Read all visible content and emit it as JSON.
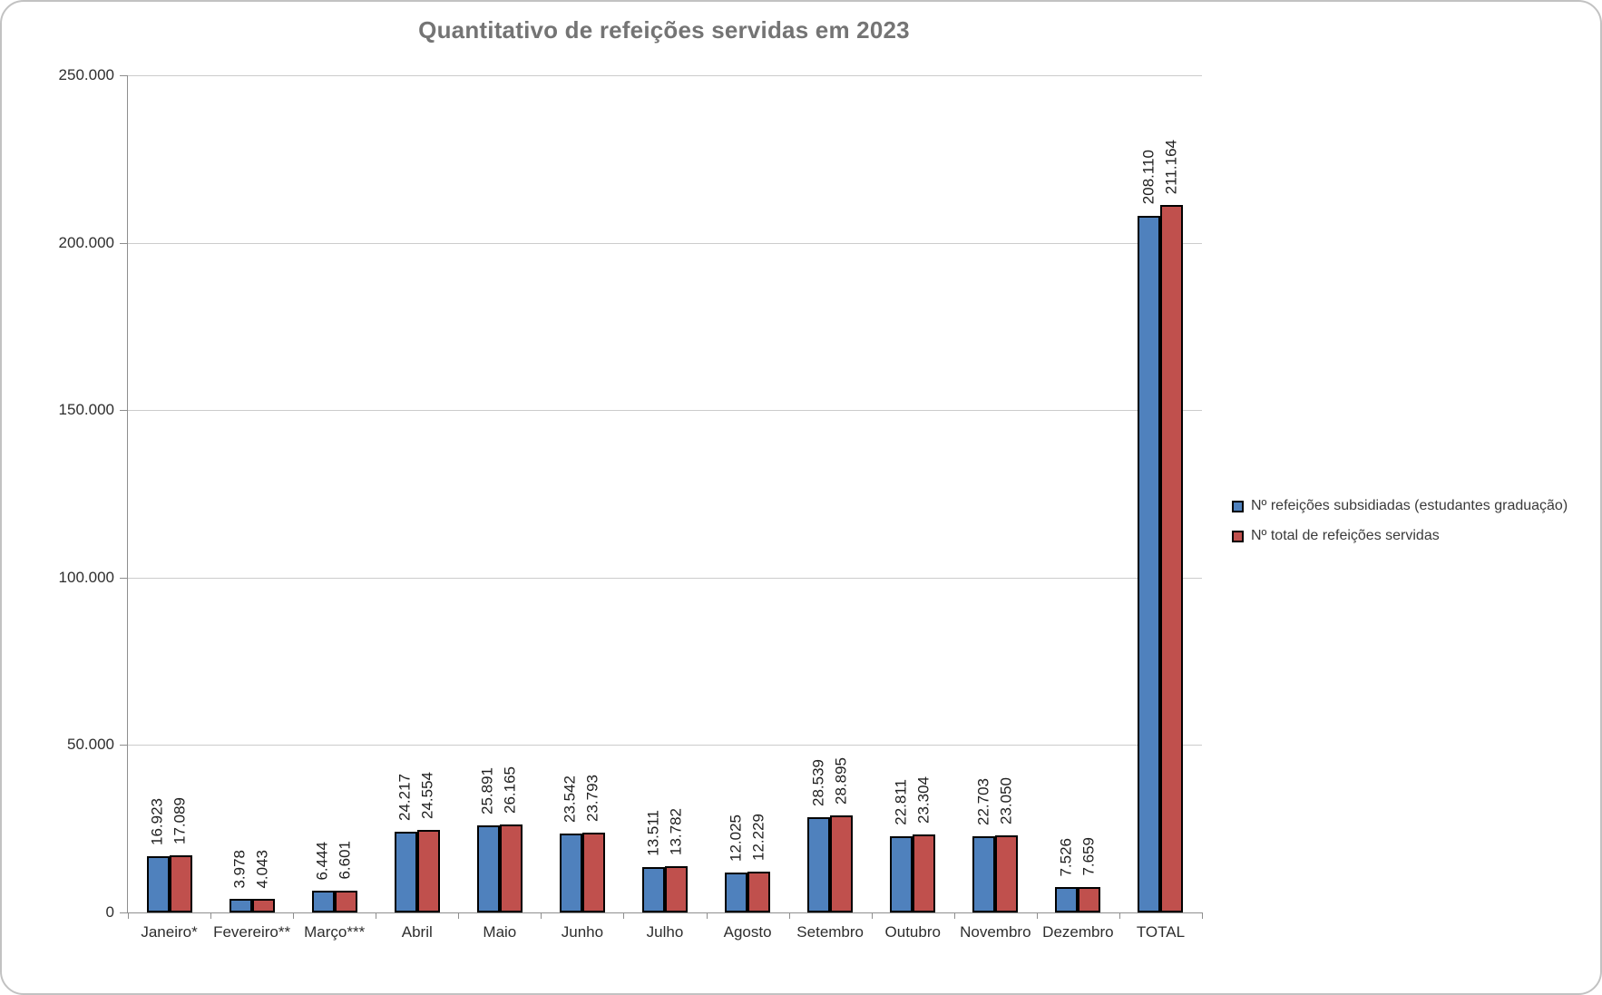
{
  "title": "Quantitativo de refeições servidas em 2023",
  "colors": {
    "series1_fill": "#4F81BD",
    "series2_fill": "#C0504D",
    "bar_border": "#000000",
    "title_text": "#747474",
    "gridline": "#CCCCCC",
    "axis_line": "#8E8E8E",
    "frame_border": "#C2C2C2",
    "label_text": "#1f1f1f"
  },
  "chart_data": {
    "type": "bar",
    "title": "Quantitativo de refeições servidas em 2023",
    "xlabel": "",
    "ylabel": "",
    "categories": [
      "Janeiro*",
      "Fevereiro**",
      "Março***",
      "Abril",
      "Maio",
      "Junho",
      "Julho",
      "Agosto",
      "Setembro",
      "Outubro",
      "Novembro",
      "Dezembro",
      "TOTAL"
    ],
    "series": [
      {
        "name": "Nº refeições subsidiadas (estudantes graduação)",
        "color": "#4F81BD",
        "values": [
          16923,
          3978,
          6444,
          24217,
          25891,
          23542,
          13511,
          12025,
          28539,
          22811,
          22703,
          7526,
          208110
        ]
      },
      {
        "name": "Nº total de refeições servidas",
        "color": "#C0504D",
        "values": [
          17089,
          4043,
          6601,
          24554,
          26165,
          23793,
          13782,
          12229,
          28895,
          23304,
          23050,
          7659,
          211164
        ]
      }
    ],
    "ylim": [
      0,
      250000
    ],
    "y_ticks": [
      0,
      50000,
      100000,
      150000,
      200000,
      250000
    ],
    "y_tick_labels": [
      "0",
      "50.000",
      "100.000",
      "150.000",
      "200.000",
      "250.000"
    ],
    "grid": true,
    "legend_position": "right",
    "data_labels": "rotated-90-above-bars",
    "number_format": "thousands-dot"
  }
}
